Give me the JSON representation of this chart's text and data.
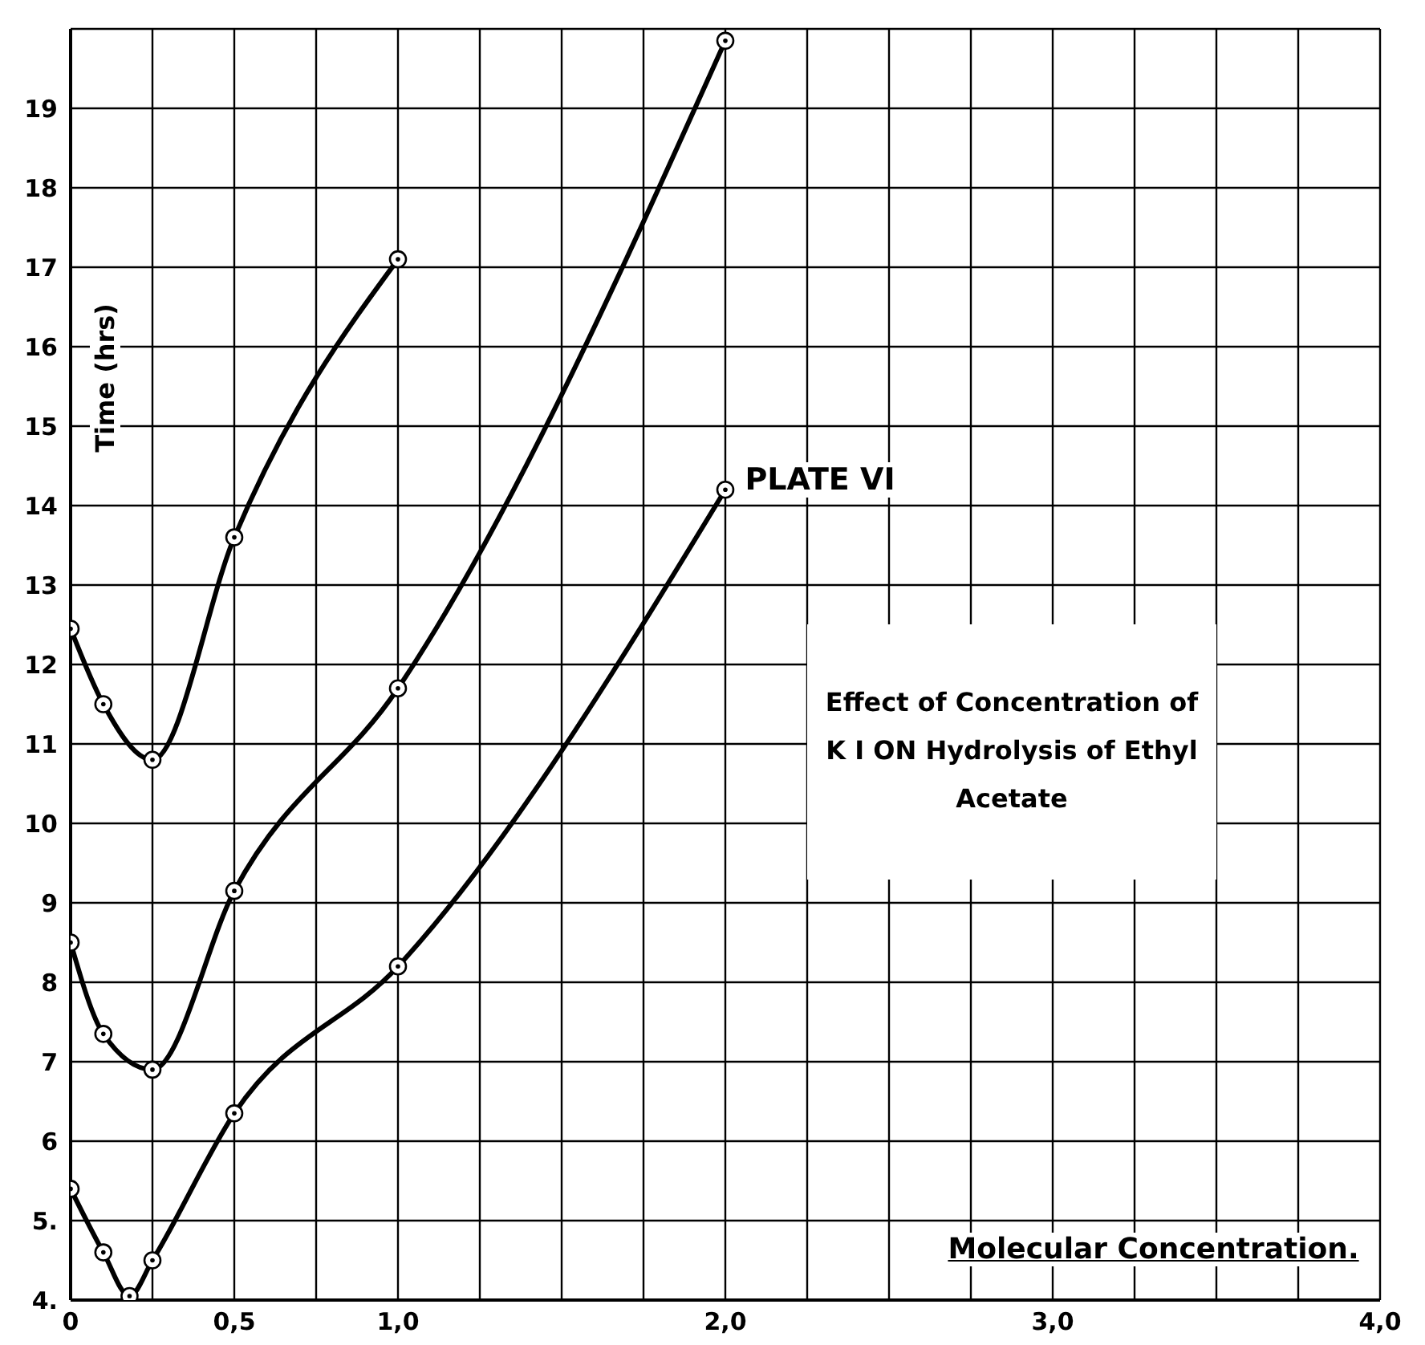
{
  "chart_data": {
    "type": "line",
    "title": "Effect of Concentration of K I ON Hydrolysis of Ethyl Acetate",
    "xlabel": "Molecular Concentration.",
    "ylabel": "Time (hrs)",
    "annotations": [
      "PLATE VI"
    ],
    "series": [
      {
        "color": "#000000",
        "x": [
          0,
          0.1,
          0.25,
          0.5,
          1.0
        ],
        "values": [
          12.45,
          11.5,
          10.8,
          13.6,
          17.1
        ]
      },
      {
        "color": "#000000",
        "x": [
          0,
          0.1,
          0.25,
          0.5,
          1.0,
          2.0
        ],
        "values": [
          8.5,
          7.35,
          6.9,
          9.15,
          11.7,
          19.85
        ]
      },
      {
        "color": "#000000",
        "x": [
          0,
          0.1,
          0.18,
          0.25,
          0.5,
          1.0,
          2.0
        ],
        "values": [
          5.4,
          4.6,
          4.05,
          4.5,
          6.35,
          8.2,
          14.2
        ]
      }
    ],
    "xlim": [
      0,
      4
    ],
    "ylim": [
      4,
      20
    ],
    "xticks": [
      0,
      {
        "value": 0.25,
        "label": null
      },
      {
        "value": 0.5,
        "label": "0,5"
      },
      {
        "value": 0.75,
        "label": null
      },
      {
        "value": 1,
        "label": "1,0"
      },
      {
        "value": 1.25,
        "label": null
      },
      {
        "value": 1.5,
        "label": null
      },
      {
        "value": 1.75,
        "label": null
      },
      {
        "value": 2,
        "label": "2,0"
      },
      {
        "value": 2.25,
        "label": null
      },
      {
        "value": 2.5,
        "label": null
      },
      {
        "value": 2.75,
        "label": null
      },
      {
        "value": 3,
        "label": "3,0"
      },
      {
        "value": 3.25,
        "label": null
      },
      {
        "value": 3.5,
        "label": null
      },
      {
        "value": 3.75,
        "label": null
      },
      {
        "value": 4,
        "label": "4,0"
      }
    ],
    "yticks": [
      {
        "value": 4,
        "label": "4."
      },
      {
        "value": 5,
        "label": "5."
      },
      6,
      7,
      8,
      9,
      10,
      11,
      12,
      13,
      14,
      15,
      16,
      17,
      18,
      19,
      {
        "value": 20,
        "label": null
      }
    ],
    "grid": true,
    "marker": "circle",
    "line_style": "solid"
  }
}
